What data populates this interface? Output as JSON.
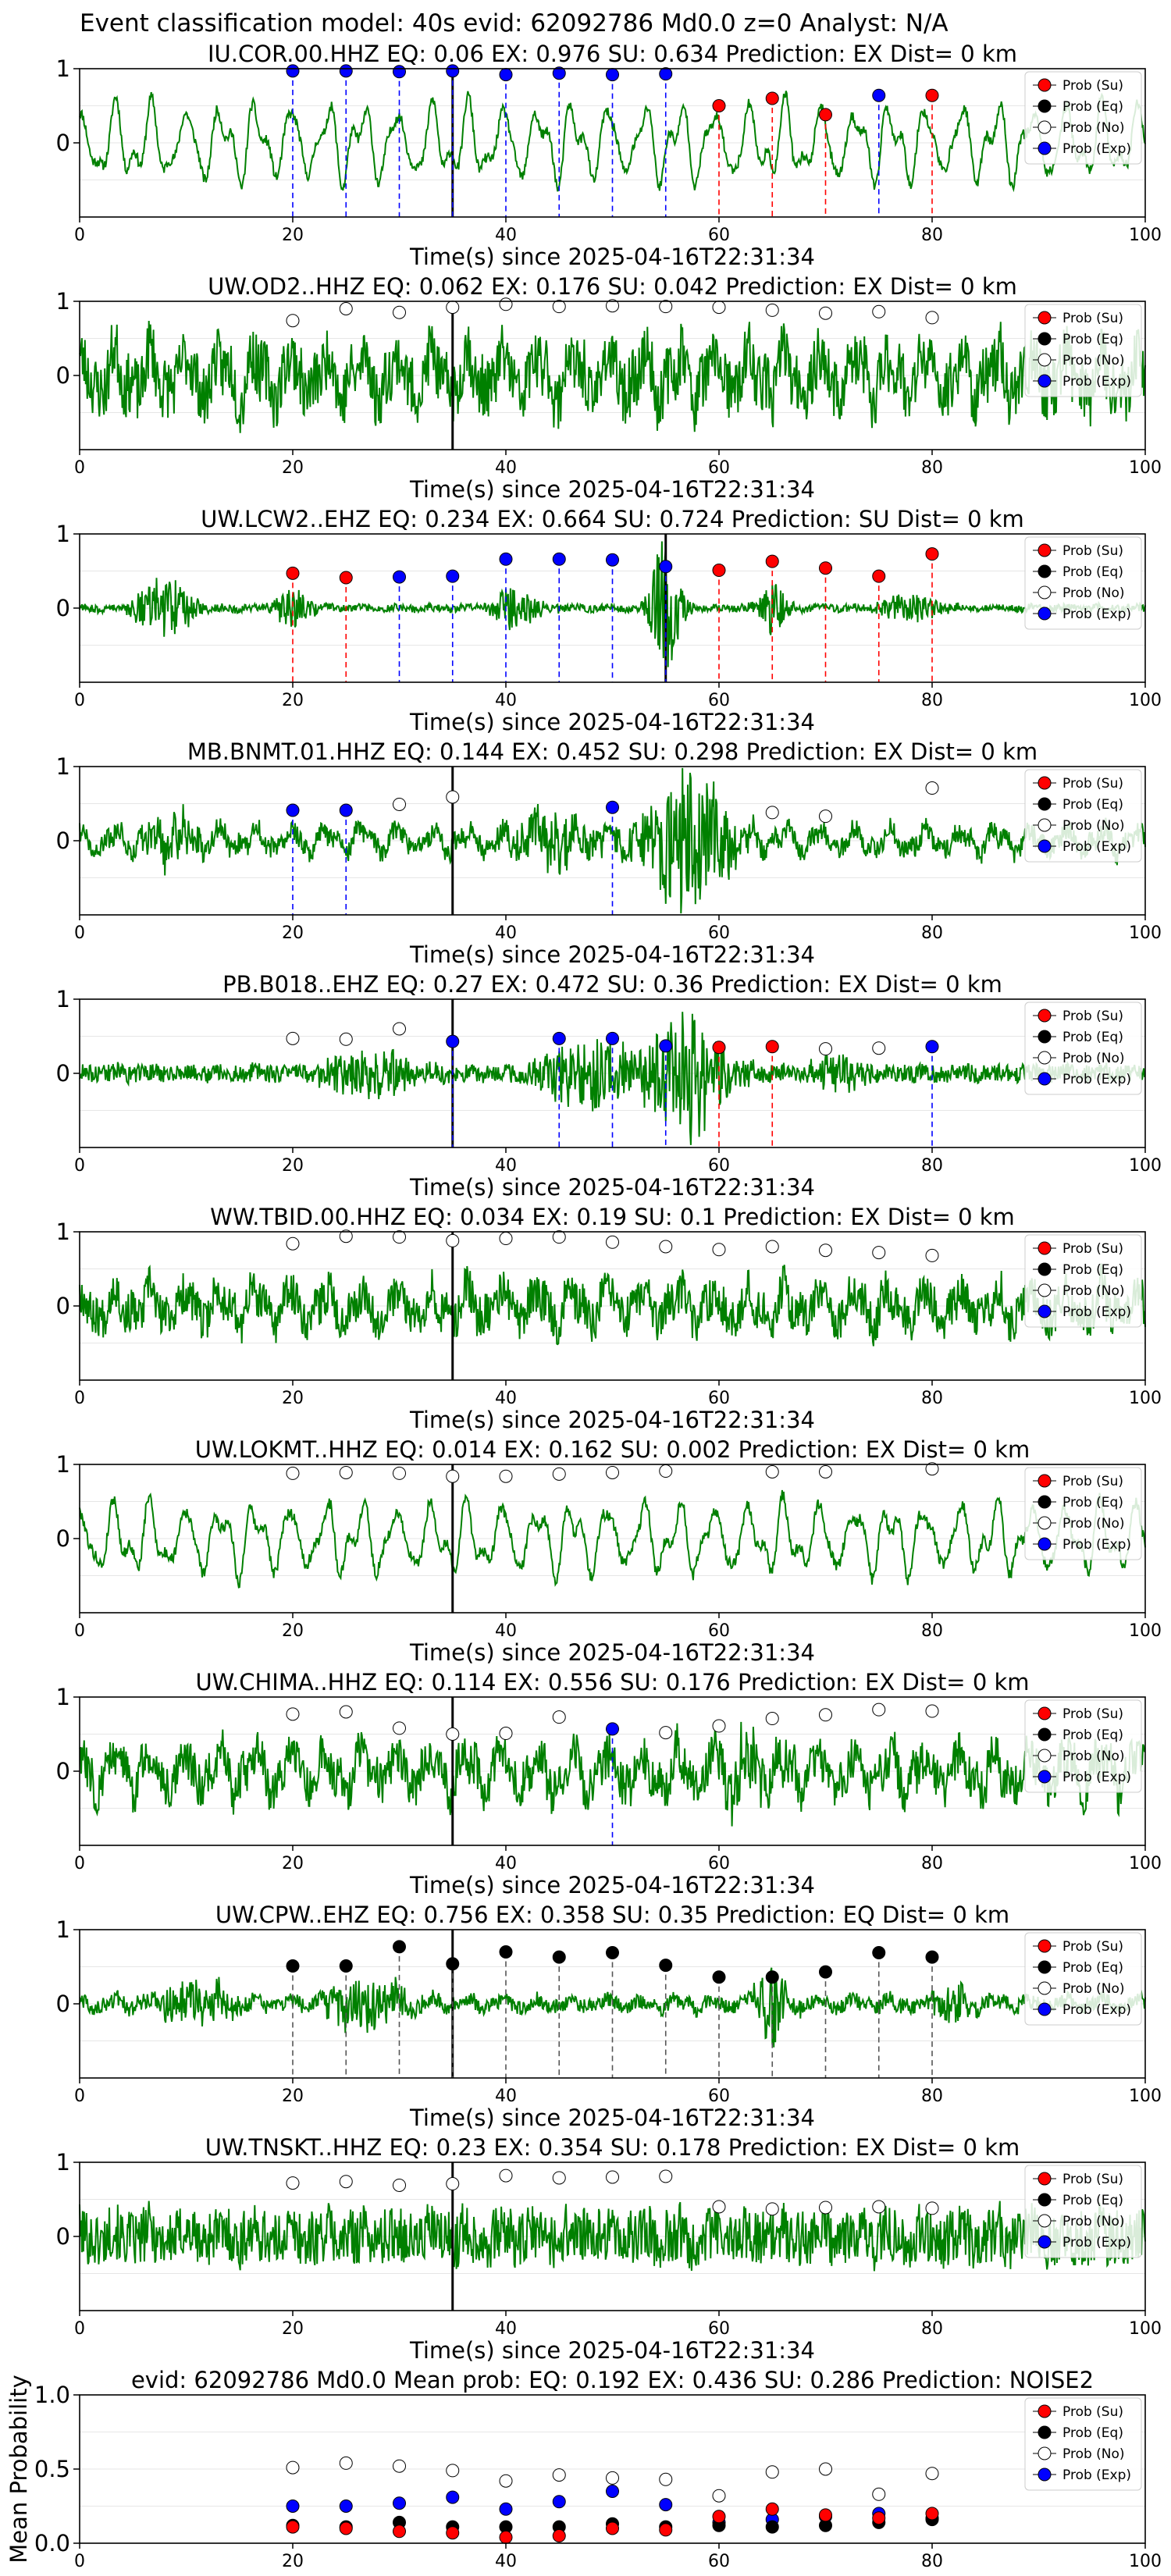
{
  "figure": {
    "suptitle": "Event classification model: 40s evid: 62092786 Md0.0 z=0 Analyst: N/A",
    "xlabel": "Time(s) since 2025-04-16T22:31:34",
    "legend": [
      "Prob (Su)",
      "Prob (Eq)",
      "Prob (No)",
      "Prob (Exp)"
    ],
    "xticks": [
      0,
      20,
      40,
      60,
      80,
      100
    ],
    "yticks": [
      0,
      1
    ],
    "colors": {
      "su": "#ff0000",
      "eq": "#000000",
      "no": "#ffffff",
      "exp": "#0000ff",
      "trace": "#008000",
      "su_line": "#ff0000",
      "eq_line": "#555555",
      "exp_line": "#0000ff"
    }
  },
  "chart_data": [
    {
      "type": "line",
      "station": "IU.COR.00.HHZ",
      "title": "IU.COR.00.HHZ   EQ: 0.06  EX: 0.976  SU: 0.634   Prediction: EX    Dist= 0 km",
      "xlim": [
        0,
        100
      ],
      "ylim": [
        -1,
        1
      ],
      "pick_time": 35,
      "seed": 11,
      "amp": 0.55,
      "noise": 0.07,
      "bursts": [],
      "points": [
        {
          "t": 20,
          "p": 0.97,
          "c": "exp"
        },
        {
          "t": 25,
          "p": 0.97,
          "c": "exp"
        },
        {
          "t": 30,
          "p": 0.96,
          "c": "exp"
        },
        {
          "t": 35,
          "p": 0.97,
          "c": "exp"
        },
        {
          "t": 40,
          "p": 0.92,
          "c": "exp"
        },
        {
          "t": 45,
          "p": 0.94,
          "c": "exp"
        },
        {
          "t": 50,
          "p": 0.92,
          "c": "exp"
        },
        {
          "t": 55,
          "p": 0.93,
          "c": "exp"
        },
        {
          "t": 60,
          "p": 0.5,
          "c": "su"
        },
        {
          "t": 65,
          "p": 0.6,
          "c": "su"
        },
        {
          "t": 70,
          "p": 0.38,
          "c": "su"
        },
        {
          "t": 75,
          "p": 0.64,
          "c": "exp"
        },
        {
          "t": 80,
          "p": 0.64,
          "c": "su"
        }
      ]
    },
    {
      "type": "line",
      "station": "UW.OD2..HHZ",
      "title": "UW.OD2..HHZ   EQ: 0.062  EX: 0.176  SU: 0.042   Prediction: EX    Dist= 0 km",
      "xlim": [
        0,
        100
      ],
      "ylim": [
        -1,
        1
      ],
      "pick_time": 35,
      "seed": 23,
      "amp": 0.35,
      "noise": 0.42,
      "bursts": [],
      "points": [
        {
          "t": 20,
          "p": 0.74,
          "c": "no"
        },
        {
          "t": 25,
          "p": 0.9,
          "c": "no"
        },
        {
          "t": 30,
          "p": 0.85,
          "c": "no"
        },
        {
          "t": 35,
          "p": 0.92,
          "c": "no"
        },
        {
          "t": 40,
          "p": 0.96,
          "c": "no"
        },
        {
          "t": 45,
          "p": 0.93,
          "c": "no"
        },
        {
          "t": 50,
          "p": 0.94,
          "c": "no"
        },
        {
          "t": 55,
          "p": 0.93,
          "c": "no"
        },
        {
          "t": 60,
          "p": 0.92,
          "c": "no"
        },
        {
          "t": 65,
          "p": 0.88,
          "c": "no"
        },
        {
          "t": 70,
          "p": 0.84,
          "c": "no"
        },
        {
          "t": 75,
          "p": 0.86,
          "c": "no"
        },
        {
          "t": 80,
          "p": 0.78,
          "c": "no"
        }
      ]
    },
    {
      "type": "line",
      "station": "UW.LCW2..EHZ",
      "title": "UW.LCW2..EHZ   EQ: 0.234  EX: 0.664  SU: 0.724   Prediction: SU    Dist= 0 km",
      "xlim": [
        0,
        100
      ],
      "ylim": [
        -1,
        1
      ],
      "pick_time": 55,
      "seed": 37,
      "amp": 0.02,
      "noise": 0.05,
      "bursts": [
        {
          "t": 8,
          "w": 3,
          "a": 0.4
        },
        {
          "t": 20,
          "w": 2,
          "a": 0.25
        },
        {
          "t": 41,
          "w": 2.5,
          "a": 0.3
        },
        {
          "t": 55,
          "w": 1.5,
          "a": 0.95
        },
        {
          "t": 65,
          "w": 1.5,
          "a": 0.35
        },
        {
          "t": 78,
          "w": 3,
          "a": 0.2
        }
      ],
      "points": [
        {
          "t": 20,
          "p": 0.47,
          "c": "su"
        },
        {
          "t": 25,
          "p": 0.41,
          "c": "su"
        },
        {
          "t": 30,
          "p": 0.42,
          "c": "exp"
        },
        {
          "t": 35,
          "p": 0.43,
          "c": "exp"
        },
        {
          "t": 40,
          "p": 0.66,
          "c": "exp"
        },
        {
          "t": 45,
          "p": 0.66,
          "c": "exp"
        },
        {
          "t": 50,
          "p": 0.65,
          "c": "exp"
        },
        {
          "t": 55,
          "p": 0.56,
          "c": "exp"
        },
        {
          "t": 60,
          "p": 0.51,
          "c": "su"
        },
        {
          "t": 65,
          "p": 0.63,
          "c": "su"
        },
        {
          "t": 70,
          "p": 0.54,
          "c": "su"
        },
        {
          "t": 75,
          "p": 0.43,
          "c": "su"
        },
        {
          "t": 80,
          "p": 0.73,
          "c": "su"
        }
      ]
    },
    {
      "type": "line",
      "station": "MB.BNMT.01.HHZ",
      "title": "MB.BNMT.01.HHZ   EQ: 0.144  EX: 0.452  SU: 0.298   Prediction: EX    Dist= 0 km",
      "xlim": [
        0,
        100
      ],
      "ylim": [
        -1,
        1
      ],
      "pick_time": 35,
      "seed": 41,
      "amp": 0.18,
      "noise": 0.14,
      "bursts": [
        {
          "t": 9,
          "w": 3,
          "a": 0.3
        },
        {
          "t": 44,
          "w": 5,
          "a": 0.35
        },
        {
          "t": 57,
          "w": 4,
          "a": 0.95
        }
      ],
      "points": [
        {
          "t": 20,
          "p": 0.41,
          "c": "exp"
        },
        {
          "t": 25,
          "p": 0.41,
          "c": "exp"
        },
        {
          "t": 30,
          "p": 0.49,
          "c": "no"
        },
        {
          "t": 35,
          "p": 0.59,
          "c": "no"
        },
        {
          "t": 50,
          "p": 0.45,
          "c": "exp"
        },
        {
          "t": 65,
          "p": 0.38,
          "c": "no"
        },
        {
          "t": 70,
          "p": 0.33,
          "c": "no"
        },
        {
          "t": 80,
          "p": 0.71,
          "c": "no"
        }
      ]
    },
    {
      "type": "line",
      "station": "PB.B018..EHZ",
      "title": "PB.B018..EHZ   EQ: 0.27  EX: 0.472  SU: 0.36   Prediction: EX    Dist= 0 km",
      "xlim": [
        0,
        100
      ],
      "ylim": [
        -1,
        1
      ],
      "pick_time": 35,
      "seed": 53,
      "amp": 0.03,
      "noise": 0.12,
      "bursts": [
        {
          "t": 27,
          "w": 4,
          "a": 0.35
        },
        {
          "t": 48,
          "w": 5,
          "a": 0.5
        },
        {
          "t": 57,
          "w": 4,
          "a": 0.9
        },
        {
          "t": 71,
          "w": 3,
          "a": 0.25
        }
      ],
      "points": [
        {
          "t": 20,
          "p": 0.47,
          "c": "no"
        },
        {
          "t": 25,
          "p": 0.46,
          "c": "no"
        },
        {
          "t": 30,
          "p": 0.6,
          "c": "no"
        },
        {
          "t": 35,
          "p": 0.43,
          "c": "exp"
        },
        {
          "t": 45,
          "p": 0.47,
          "c": "exp"
        },
        {
          "t": 50,
          "p": 0.47,
          "c": "exp"
        },
        {
          "t": 55,
          "p": 0.37,
          "c": "exp"
        },
        {
          "t": 60,
          "p": 0.35,
          "c": "su"
        },
        {
          "t": 65,
          "p": 0.36,
          "c": "su"
        },
        {
          "t": 70,
          "p": 0.33,
          "c": "no"
        },
        {
          "t": 75,
          "p": 0.34,
          "c": "no"
        },
        {
          "t": 80,
          "p": 0.36,
          "c": "exp"
        }
      ]
    },
    {
      "type": "line",
      "station": "WW.TBID.00.HHZ",
      "title": "WW.TBID.00.HHZ   EQ: 0.034  EX: 0.19  SU: 0.1   Prediction: EX    Dist= 0 km",
      "xlim": [
        0,
        100
      ],
      "ylim": [
        -1,
        1
      ],
      "pick_time": 35,
      "seed": 67,
      "amp": 0.25,
      "noise": 0.28,
      "bursts": [],
      "points": [
        {
          "t": 20,
          "p": 0.84,
          "c": "no"
        },
        {
          "t": 25,
          "p": 0.94,
          "c": "no"
        },
        {
          "t": 30,
          "p": 0.93,
          "c": "no"
        },
        {
          "t": 35,
          "p": 0.88,
          "c": "no"
        },
        {
          "t": 40,
          "p": 0.91,
          "c": "no"
        },
        {
          "t": 45,
          "p": 0.93,
          "c": "no"
        },
        {
          "t": 50,
          "p": 0.86,
          "c": "no"
        },
        {
          "t": 55,
          "p": 0.8,
          "c": "no"
        },
        {
          "t": 60,
          "p": 0.76,
          "c": "no"
        },
        {
          "t": 65,
          "p": 0.8,
          "c": "no"
        },
        {
          "t": 70,
          "p": 0.75,
          "c": "no"
        },
        {
          "t": 75,
          "p": 0.72,
          "c": "no"
        },
        {
          "t": 80,
          "p": 0.68,
          "c": "no"
        }
      ]
    },
    {
      "type": "line",
      "station": "UW.LOKMT..HHZ",
      "title": "UW.LOKMT..HHZ   EQ: 0.014  EX: 0.162  SU: 0.002   Prediction: EX    Dist= 0 km",
      "xlim": [
        0,
        100
      ],
      "ylim": [
        -1,
        1
      ],
      "pick_time": 35,
      "seed": 79,
      "amp": 0.5,
      "noise": 0.08,
      "bursts": [],
      "points": [
        {
          "t": 20,
          "p": 0.88,
          "c": "no"
        },
        {
          "t": 25,
          "p": 0.89,
          "c": "no"
        },
        {
          "t": 30,
          "p": 0.88,
          "c": "no"
        },
        {
          "t": 35,
          "p": 0.84,
          "c": "no"
        },
        {
          "t": 40,
          "p": 0.84,
          "c": "no"
        },
        {
          "t": 45,
          "p": 0.87,
          "c": "no"
        },
        {
          "t": 50,
          "p": 0.89,
          "c": "no"
        },
        {
          "t": 55,
          "p": 0.91,
          "c": "no"
        },
        {
          "t": 65,
          "p": 0.9,
          "c": "no"
        },
        {
          "t": 70,
          "p": 0.9,
          "c": "no"
        },
        {
          "t": 80,
          "p": 0.94,
          "c": "no"
        }
      ]
    },
    {
      "type": "line",
      "station": "UW.CHIMA..HHZ",
      "title": "UW.CHIMA..HHZ   EQ: 0.114  EX: 0.556  SU: 0.176   Prediction: EX    Dist= 0 km",
      "xlim": [
        0,
        100
      ],
      "ylim": [
        -1,
        1
      ],
      "pick_time": 35,
      "seed": 83,
      "amp": 0.3,
      "noise": 0.3,
      "bursts": [
        {
          "t": 62,
          "w": 4,
          "a": 0.35
        }
      ],
      "points": [
        {
          "t": 20,
          "p": 0.77,
          "c": "no"
        },
        {
          "t": 25,
          "p": 0.8,
          "c": "no"
        },
        {
          "t": 30,
          "p": 0.58,
          "c": "no"
        },
        {
          "t": 35,
          "p": 0.5,
          "c": "no"
        },
        {
          "t": 40,
          "p": 0.51,
          "c": "no"
        },
        {
          "t": 45,
          "p": 0.73,
          "c": "no"
        },
        {
          "t": 50,
          "p": 0.57,
          "c": "exp"
        },
        {
          "t": 55,
          "p": 0.52,
          "c": "no"
        },
        {
          "t": 60,
          "p": 0.61,
          "c": "no"
        },
        {
          "t": 65,
          "p": 0.71,
          "c": "no"
        },
        {
          "t": 70,
          "p": 0.76,
          "c": "no"
        },
        {
          "t": 75,
          "p": 0.83,
          "c": "no"
        },
        {
          "t": 80,
          "p": 0.81,
          "c": "no"
        }
      ]
    },
    {
      "type": "line",
      "station": "UW.CPW..EHZ",
      "title": "UW.CPW..EHZ   EQ: 0.756  EX: 0.358  SU: 0.35   Prediction: EQ    Dist= 0 km",
      "xlim": [
        0,
        100
      ],
      "ylim": [
        -1,
        1
      ],
      "pick_time": 35,
      "seed": 97,
      "amp": 0.08,
      "noise": 0.1,
      "bursts": [
        {
          "t": 11,
          "w": 4,
          "a": 0.3
        },
        {
          "t": 27,
          "w": 4,
          "a": 0.35
        },
        {
          "t": 65,
          "w": 1.5,
          "a": 0.6
        },
        {
          "t": 82,
          "w": 2,
          "a": 0.3
        }
      ],
      "points": [
        {
          "t": 20,
          "p": 0.51,
          "c": "eq"
        },
        {
          "t": 25,
          "p": 0.51,
          "c": "eq"
        },
        {
          "t": 30,
          "p": 0.77,
          "c": "eq"
        },
        {
          "t": 35,
          "p": 0.54,
          "c": "eq"
        },
        {
          "t": 40,
          "p": 0.7,
          "c": "eq"
        },
        {
          "t": 45,
          "p": 0.63,
          "c": "eq"
        },
        {
          "t": 50,
          "p": 0.69,
          "c": "eq"
        },
        {
          "t": 55,
          "p": 0.52,
          "c": "eq"
        },
        {
          "t": 60,
          "p": 0.36,
          "c": "eq"
        },
        {
          "t": 65,
          "p": 0.36,
          "c": "eq"
        },
        {
          "t": 70,
          "p": 0.43,
          "c": "eq"
        },
        {
          "t": 75,
          "p": 0.69,
          "c": "eq"
        },
        {
          "t": 80,
          "p": 0.63,
          "c": "eq"
        }
      ]
    },
    {
      "type": "line",
      "station": "UW.TNSKT..HHZ",
      "title": "UW.TNSKT..HHZ   EQ: 0.23  EX: 0.354  SU: 0.178   Prediction: EX    Dist= 0 km",
      "xlim": [
        0,
        100
      ],
      "ylim": [
        -1,
        1
      ],
      "pick_time": 35,
      "seed": 101,
      "amp": 0.1,
      "noise": 0.38,
      "bursts": [],
      "points": [
        {
          "t": 20,
          "p": 0.72,
          "c": "no"
        },
        {
          "t": 25,
          "p": 0.74,
          "c": "no"
        },
        {
          "t": 30,
          "p": 0.69,
          "c": "no"
        },
        {
          "t": 35,
          "p": 0.71,
          "c": "no"
        },
        {
          "t": 40,
          "p": 0.82,
          "c": "no"
        },
        {
          "t": 45,
          "p": 0.79,
          "c": "no"
        },
        {
          "t": 50,
          "p": 0.8,
          "c": "no"
        },
        {
          "t": 55,
          "p": 0.81,
          "c": "no"
        },
        {
          "t": 60,
          "p": 0.4,
          "c": "no"
        },
        {
          "t": 65,
          "p": 0.37,
          "c": "no"
        },
        {
          "t": 70,
          "p": 0.39,
          "c": "no"
        },
        {
          "t": 75,
          "p": 0.4,
          "c": "no"
        },
        {
          "t": 80,
          "p": 0.38,
          "c": "no"
        }
      ]
    },
    {
      "type": "scatter",
      "station": "mean",
      "title": "evid: 62092786  Md0.0   Mean prob:   EQ: 0.192  EX: 0.436  SU: 0.286   Prediction: NOISE2",
      "ylabel": "Mean Probability",
      "xlim": [
        0,
        100
      ],
      "ylim": [
        0,
        1
      ],
      "yticks": [
        0.0,
        0.5,
        1.0
      ],
      "x": [
        20,
        25,
        30,
        35,
        40,
        45,
        50,
        55,
        60,
        65,
        70,
        75,
        80
      ],
      "series": [
        {
          "name": "Prob (No)",
          "c": "no",
          "values": [
            0.51,
            0.54,
            0.52,
            0.49,
            0.42,
            0.46,
            0.44,
            0.43,
            0.32,
            0.48,
            0.5,
            0.33,
            0.47
          ]
        },
        {
          "name": "Prob (Exp)",
          "c": "exp",
          "values": [
            0.25,
            0.25,
            0.27,
            0.31,
            0.23,
            0.28,
            0.35,
            0.26,
            0.14,
            0.16,
            0.18,
            0.2,
            0.17
          ]
        },
        {
          "name": "Prob (Eq)",
          "c": "eq",
          "values": [
            0.12,
            0.11,
            0.14,
            0.11,
            0.11,
            0.11,
            0.13,
            0.11,
            0.12,
            0.11,
            0.12,
            0.14,
            0.16
          ]
        },
        {
          "name": "Prob (Su)",
          "c": "su",
          "values": [
            0.11,
            0.1,
            0.08,
            0.07,
            0.04,
            0.05,
            0.1,
            0.09,
            0.18,
            0.23,
            0.19,
            0.17,
            0.2
          ]
        }
      ]
    }
  ]
}
